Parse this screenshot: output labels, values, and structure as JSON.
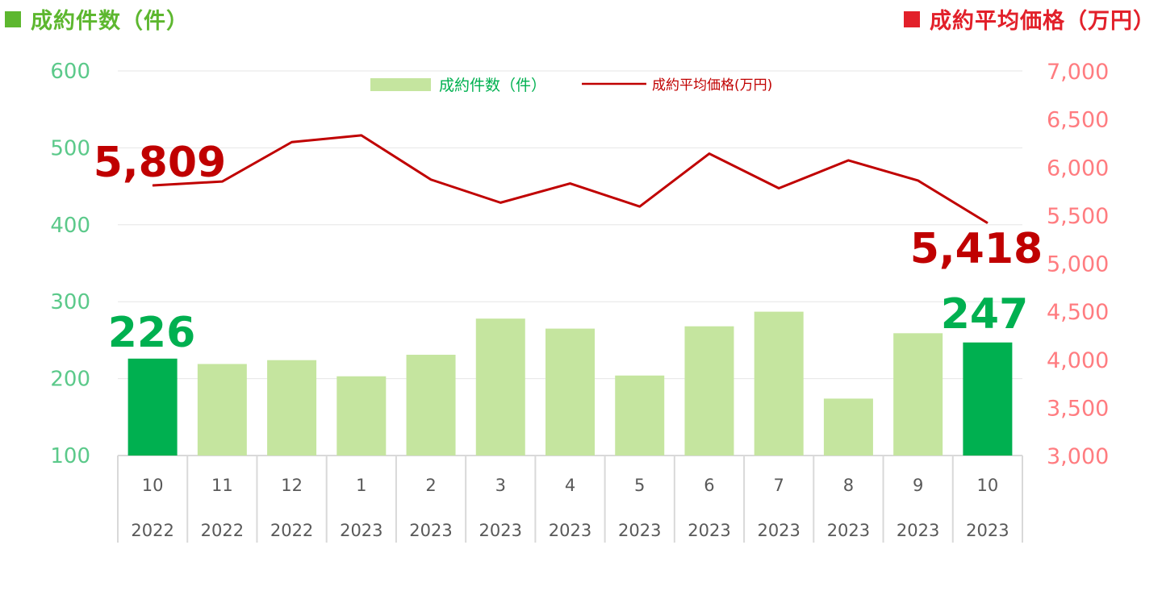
{
  "header": {
    "left_title": "成約件数（件）",
    "right_title": "成約平均価格（万円）",
    "left_color": "#5DB72F",
    "right_color": "#E2202A"
  },
  "chart_data": {
    "type": "bar",
    "categories": [
      {
        "month": "10",
        "year": "2022"
      },
      {
        "month": "11",
        "year": "2022"
      },
      {
        "month": "12",
        "year": "2022"
      },
      {
        "month": "1",
        "year": "2023"
      },
      {
        "month": "2",
        "year": "2023"
      },
      {
        "month": "3",
        "year": "2023"
      },
      {
        "month": "4",
        "year": "2023"
      },
      {
        "month": "5",
        "year": "2023"
      },
      {
        "month": "6",
        "year": "2023"
      },
      {
        "month": "7",
        "year": "2023"
      },
      {
        "month": "8",
        "year": "2023"
      },
      {
        "month": "9",
        "year": "2023"
      },
      {
        "month": "10",
        "year": "2023"
      }
    ],
    "series": [
      {
        "name": "成約件数（件）",
        "type": "bar",
        "axis": "left",
        "values": [
          226,
          219,
          224,
          203,
          231,
          278,
          265,
          204,
          268,
          287,
          174,
          259,
          247
        ],
        "color": "#C5E59F",
        "highlight_color": "#00B050",
        "highlight_indices": [
          0,
          12
        ]
      },
      {
        "name": "成約平均価格(万円)",
        "type": "line",
        "axis": "right",
        "values": [
          5809,
          5850,
          6260,
          6330,
          5870,
          5630,
          5830,
          5590,
          6140,
          5780,
          6070,
          5860,
          5418
        ],
        "color": "#C00000"
      }
    ],
    "left_axis": {
      "ylim": [
        100,
        600
      ],
      "ticks": [
        "100",
        "200",
        "300",
        "400",
        "500",
        "600"
      ],
      "color": "#5BC98A"
    },
    "right_axis": {
      "ylim": [
        3000,
        7000
      ],
      "ticks": [
        "3,000",
        "3,500",
        "4,000",
        "4,500",
        "5,000",
        "5,500",
        "6,000",
        "6,500",
        "7,000"
      ],
      "color": "#FF7C80"
    },
    "data_labels": [
      {
        "text": "226",
        "series": 0,
        "index": 0,
        "color": "#00B050"
      },
      {
        "text": "247",
        "series": 0,
        "index": 12,
        "color": "#00B050"
      },
      {
        "text": "5,809",
        "series": 1,
        "index": 0,
        "color": "#C00000"
      },
      {
        "text": "5,418",
        "series": 1,
        "index": 12,
        "color": "#C00000"
      }
    ],
    "legend": {
      "placement": "top-center",
      "items": [
        "成約件数（件）",
        "成約平均価格(万円)"
      ]
    },
    "grid": true,
    "gridline_color": "#E6E6E6",
    "category_grid_color": "#D9D9D9",
    "category_text_color": "#595959"
  }
}
